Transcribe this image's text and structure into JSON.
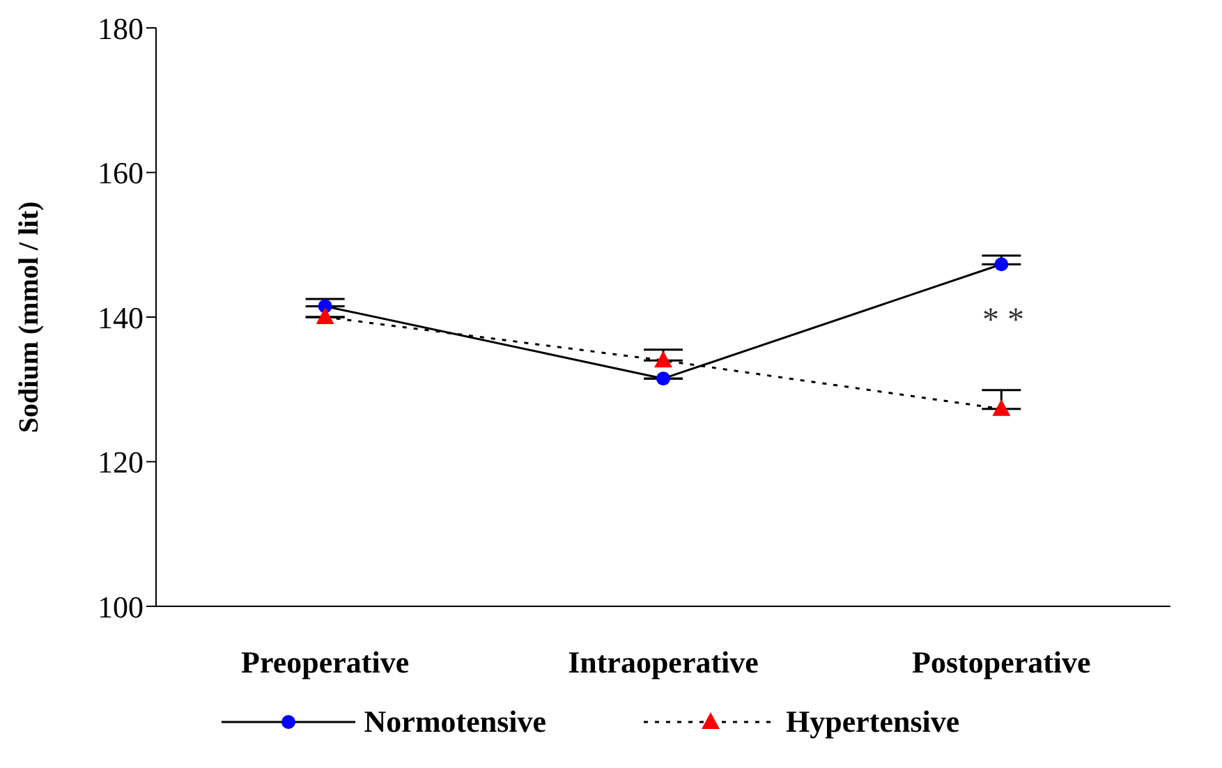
{
  "chart_data": {
    "type": "line",
    "ylabel": "Sodium (mmol / lit)",
    "categories": [
      "Preoperative",
      "Intraoperative",
      "Postoperative"
    ],
    "series": [
      {
        "name": "Normotensive",
        "color": "#0000ff",
        "values": [
          141.5,
          131.5,
          147.3
        ],
        "errors": [
          [
            141.5,
            142.5
          ],
          null,
          [
            147.3,
            148.5
          ]
        ],
        "marker": "circle",
        "line_style": "solid"
      },
      {
        "name": "Hypertensive",
        "color": "#ff0000",
        "values": [
          140,
          134,
          127.3
        ],
        "errors": [
          null,
          [
            134,
            135.5
          ],
          [
            127.3,
            129.9
          ]
        ],
        "marker": "triangle",
        "line_style": "dotted"
      }
    ],
    "ylim": [
      100,
      180
    ],
    "yticks": [
      100,
      120,
      140,
      160,
      180
    ],
    "grid": false,
    "legend": "bottom",
    "annotations": [
      "* *"
    ]
  }
}
